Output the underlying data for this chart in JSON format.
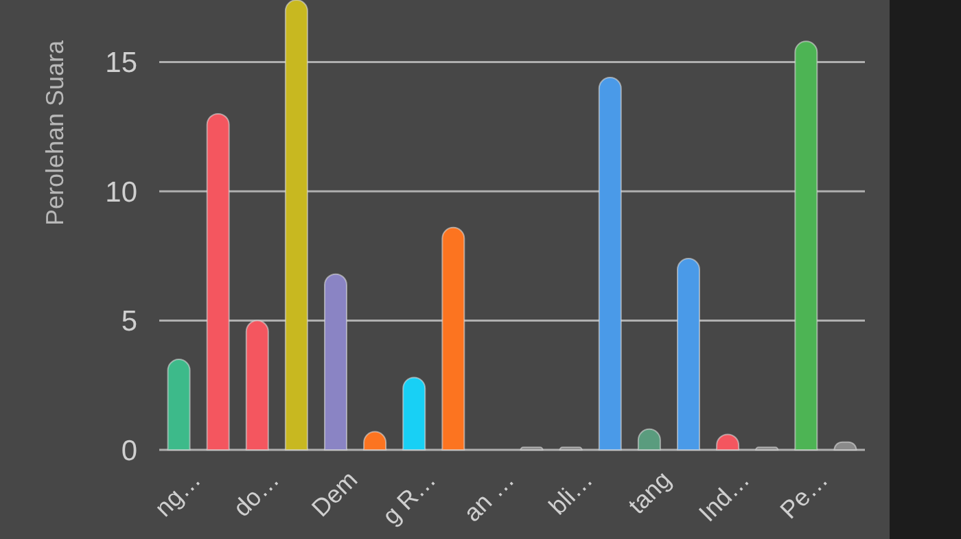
{
  "chart_data": {
    "type": "bar",
    "ylabel": "Perolehan Suara",
    "categories": [
      "ng…",
      null,
      "do…",
      null,
      "Dem",
      null,
      "g R…",
      null,
      "an …",
      null,
      "bli…",
      null,
      "tang",
      null,
      "Ind…",
      null,
      "Pe…",
      null
    ],
    "values": [
      3.5,
      13.0,
      5.0,
      17.4,
      6.8,
      0.7,
      2.8,
      8.6,
      null,
      0.1,
      0.1,
      14.4,
      0.8,
      7.4,
      0.6,
      0.1,
      15.8,
      0.3
    ],
    "colors": [
      "#3dba8a",
      "#f4565f",
      "#f4565f",
      "#c8b820",
      "#8a84c4",
      "#fc7420",
      "#18d0f5",
      "#fc7420",
      null,
      "#8a8a8a",
      "#8a8a8a",
      "#4a9ae8",
      "#5a9c7e",
      "#4a9ae8",
      "#f4565f",
      "#8a8a8a",
      "#4db454",
      "#8a8a8a"
    ],
    "ylim": [
      0,
      17.4
    ],
    "yticks": [
      0,
      5,
      10,
      15
    ],
    "grid": "y"
  }
}
